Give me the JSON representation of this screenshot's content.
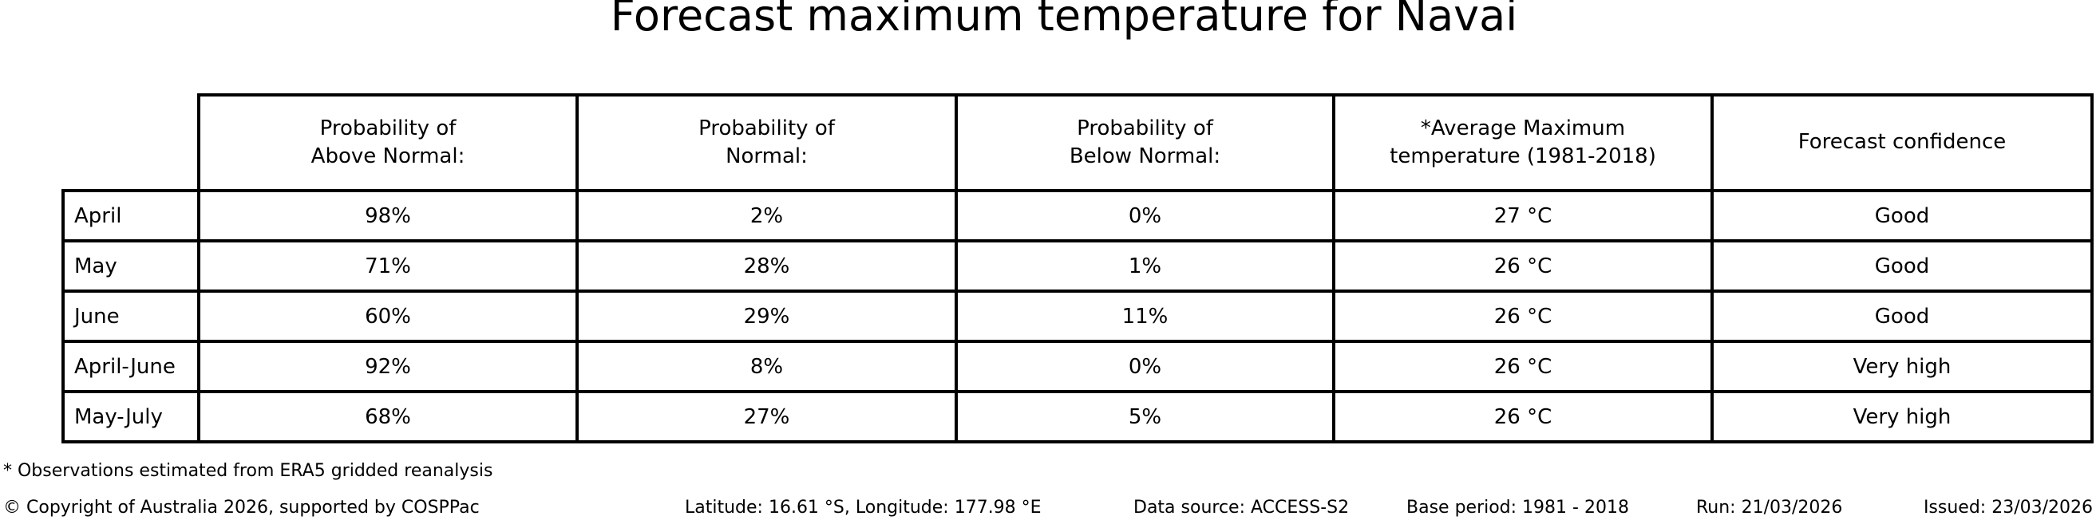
{
  "title": "Forecast maximum temperature for Navai",
  "chart_data": {
    "type": "table",
    "title": "Forecast maximum temperature for Navai",
    "columns": [
      "Probability of\nAbove Normal:",
      "Probability of\nNormal:",
      "Probability of\nBelow Normal:",
      "*Average Maximum\ntemperature (1981-2018)",
      "Forecast confidence"
    ],
    "rows": [
      {
        "label": "April",
        "values": [
          "98%",
          "2%",
          "0%",
          "27 °C",
          "Good"
        ]
      },
      {
        "label": "May",
        "values": [
          "71%",
          "28%",
          "1%",
          "26 °C",
          "Good"
        ]
      },
      {
        "label": "June",
        "values": [
          "60%",
          "29%",
          "11%",
          "26 °C",
          "Good"
        ]
      },
      {
        "label": "April-June",
        "values": [
          "92%",
          "8%",
          "0%",
          "26 °C",
          "Very high"
        ]
      },
      {
        "label": "May-July",
        "values": [
          "68%",
          "27%",
          "5%",
          "26 °C",
          "Very high"
        ]
      }
    ]
  },
  "footnote": "* Observations estimated from ERA5 gridded reanalysis",
  "footer": {
    "copyright": "© Copyright of Australia 2026, supported by COSPPac",
    "location": "Latitude: 16.61 °S, Longitude: 177.98 °E",
    "data_source": "Data source: ACCESS-S2",
    "base_period": "Base period: 1981 - 2018",
    "run": "Run: 21/03/2026",
    "issued": "Issued: 23/03/2026"
  },
  "colors": {
    "background": "#ffffff",
    "text": "#000000",
    "border": "#000000"
  }
}
